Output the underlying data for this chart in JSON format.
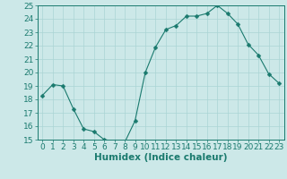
{
  "x": [
    0,
    1,
    2,
    3,
    4,
    5,
    6,
    7,
    8,
    9,
    10,
    11,
    12,
    13,
    14,
    15,
    16,
    17,
    18,
    19,
    20,
    21,
    22,
    23
  ],
  "y": [
    18.3,
    19.1,
    19.0,
    17.3,
    15.8,
    15.6,
    15.0,
    14.9,
    14.8,
    16.4,
    20.0,
    21.9,
    23.2,
    23.5,
    24.2,
    24.2,
    24.4,
    25.0,
    24.4,
    23.6,
    22.1,
    21.3,
    19.9,
    19.2
  ],
  "line_color": "#1a7a6e",
  "marker": "D",
  "marker_size": 2.5,
  "bg_color": "#cce8e8",
  "grid_major_color": "#aad4d4",
  "grid_minor_color": "#bbdddd",
  "xlabel": "Humidex (Indice chaleur)",
  "ylim": [
    15,
    25
  ],
  "xlim": [
    -0.5,
    23.5
  ],
  "yticks": [
    15,
    16,
    17,
    18,
    19,
    20,
    21,
    22,
    23,
    24,
    25
  ],
  "xticks": [
    0,
    1,
    2,
    3,
    4,
    5,
    6,
    7,
    8,
    9,
    10,
    11,
    12,
    13,
    14,
    15,
    16,
    17,
    18,
    19,
    20,
    21,
    22,
    23
  ],
  "tick_color": "#1a7a6e",
  "label_fontsize": 6.5,
  "xlabel_fontsize": 7.5
}
